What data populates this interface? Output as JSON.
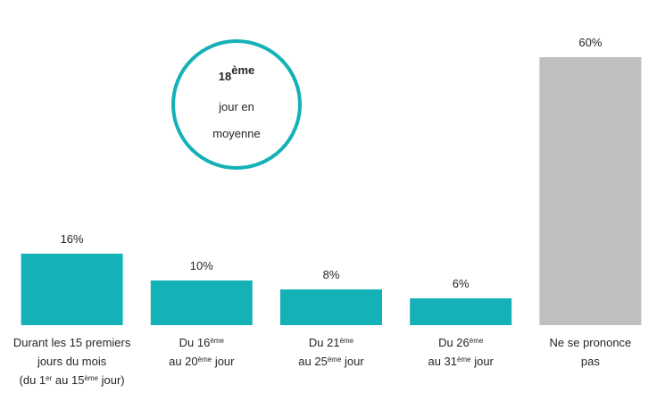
{
  "chart_data": {
    "type": "bar",
    "categories": [
      [
        [
          {
            "text": "Durant les 15 premiers"
          }
        ],
        [
          {
            "text": "jours du mois"
          }
        ],
        [
          {
            "text": "(du 1"
          },
          {
            "sup": "er"
          },
          {
            "text": " au 15"
          },
          {
            "sup": "ème"
          },
          {
            "text": " jour)"
          }
        ]
      ],
      [
        [
          {
            "text": "Du 16"
          },
          {
            "sup": "ème"
          }
        ],
        [
          {
            "text": "au 20"
          },
          {
            "sup": "ème"
          },
          {
            "text": " jour"
          }
        ]
      ],
      [
        [
          {
            "text": "Du 21"
          },
          {
            "sup": "ème"
          }
        ],
        [
          {
            "text": "au 25"
          },
          {
            "sup": "ème"
          },
          {
            "text": " jour"
          }
        ]
      ],
      [
        [
          {
            "text": "Du 26"
          },
          {
            "sup": "ème"
          }
        ],
        [
          {
            "text": "au 31"
          },
          {
            "sup": "ème"
          },
          {
            "text": " jour"
          }
        ]
      ],
      [
        [
          {
            "text": "Ne se prononce"
          }
        ],
        [
          {
            "text": "pas"
          }
        ]
      ]
    ],
    "values": [
      16,
      10,
      8,
      6,
      60
    ],
    "value_labels": [
      "16%",
      "10%",
      "8%",
      "6%",
      "60%"
    ],
    "colors": [
      "#14b1b6",
      "#14b1b6",
      "#14b1b6",
      "#14b1b6",
      "#bfbfbf"
    ],
    "annotation": {
      "lines": [
        [
          {
            "text": "18"
          },
          {
            "sup": "ème"
          }
        ],
        [
          {
            "text": "jour en"
          }
        ],
        [
          {
            "text": "moyenne"
          }
        ]
      ],
      "color": "#14b1b6"
    }
  }
}
